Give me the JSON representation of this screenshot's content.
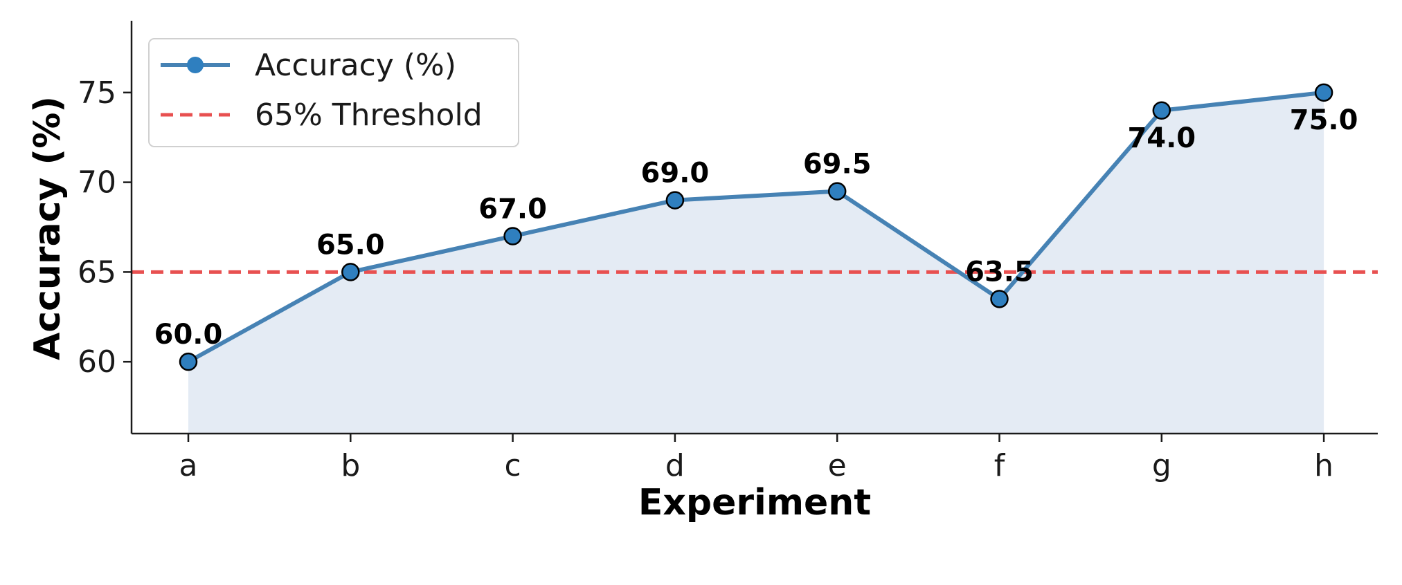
{
  "colors": {
    "line": "#4682b4",
    "marker": "#2f7fbf",
    "fill": "#e4ebf4",
    "threshold": "#e85050",
    "axis": "#1a1a1a"
  },
  "chart_data": {
    "type": "line",
    "categories": [
      "a",
      "b",
      "c",
      "d",
      "e",
      "f",
      "g",
      "h"
    ],
    "series": [
      {
        "name": "Accuracy (%)",
        "values": [
          60.0,
          65.0,
          67.0,
          69.0,
          69.5,
          63.5,
          74.0,
          75.0
        ],
        "data_labels": [
          "60.0",
          "65.0",
          "67.0",
          "69.0",
          "69.5",
          "63.5",
          "74.0",
          "75.0"
        ],
        "label_position": [
          "above",
          "above",
          "above",
          "above",
          "above",
          "above",
          "below",
          "below"
        ]
      }
    ],
    "threshold": {
      "name": "65% Threshold",
      "value": 65
    },
    "xlabel": "Experiment",
    "ylabel": "Accuracy (%)",
    "ylim": [
      56,
      79
    ],
    "yticks": [
      60,
      65,
      70,
      75
    ],
    "ytick_labels": [
      "60",
      "65",
      "70",
      "75"
    ],
    "grid": false,
    "legend_position": "top-left"
  }
}
